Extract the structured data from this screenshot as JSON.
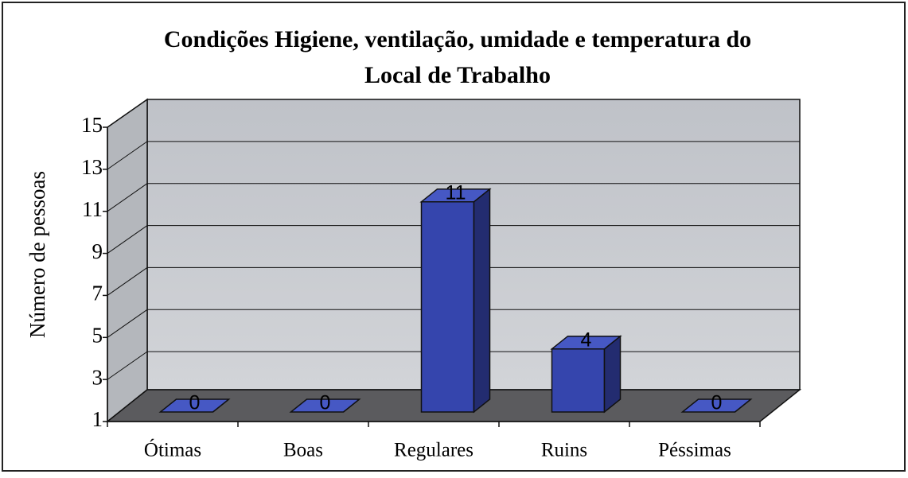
{
  "chart_data": {
    "type": "bar3d",
    "title": "Condições Higiene, ventilação, umidade e temperatura do Local de Trabalho",
    "title_lines": [
      "Condições Higiene, ventilação, umidade e temperatura do",
      "Local de Trabalho"
    ],
    "ylabel": "Número de pessoas",
    "categories": [
      "Ótimas",
      "Boas",
      "Regulares",
      "Ruins",
      "Péssimas"
    ],
    "values": [
      0,
      0,
      11,
      4,
      0
    ],
    "color": "#3545ad",
    "ylim": [
      1,
      15
    ],
    "yticks": [
      1,
      3,
      5,
      7,
      9,
      11,
      13,
      15
    ],
    "grid": true
  }
}
